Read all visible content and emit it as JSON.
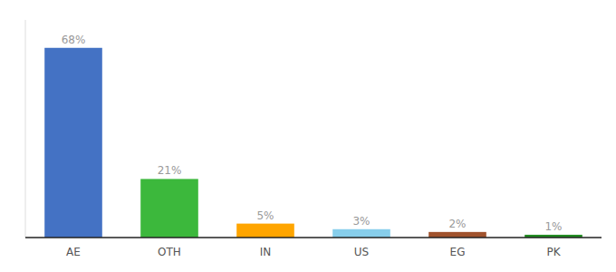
{
  "chart_data": {
    "type": "bar",
    "categories": [
      "AE",
      "OTH",
      "IN",
      "US",
      "EG",
      "PK"
    ],
    "values": [
      68,
      21,
      5,
      3,
      2,
      1
    ],
    "value_labels": [
      "68%",
      "21%",
      "5%",
      "3%",
      "2%",
      "1%"
    ],
    "colors": [
      "#4472C4",
      "#3CB83C",
      "#FFA500",
      "#87CEEB",
      "#A0522D",
      "#228B22"
    ],
    "ylim": [
      0,
      78
    ],
    "data_labels": true,
    "tick_labels": "x",
    "grid": false
  }
}
